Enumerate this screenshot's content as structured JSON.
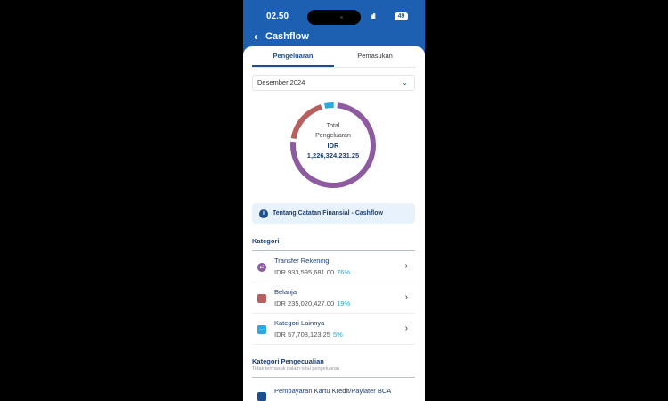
{
  "status": {
    "time": "02.50",
    "signal": "ııll",
    "battery": "49"
  },
  "header": {
    "back_icon": "chevron-left-icon",
    "title": "Cashflow"
  },
  "tabs": [
    {
      "label": "Pengeluaran",
      "active": true
    },
    {
      "label": "Pemasukan",
      "active": false
    }
  ],
  "period": {
    "value": "Desember 2024"
  },
  "donut": {
    "label1": "Total",
    "label2": "Pengeluaran",
    "currency": "IDR",
    "total": "1,226,324,231.25",
    "segments": [
      {
        "name": "Transfer Rekening",
        "percent": 76,
        "color": "#8e5aa0"
      },
      {
        "name": "Belanja",
        "percent": 19,
        "color": "#b8605f"
      },
      {
        "name": "Kategori Lainnya",
        "percent": 5,
        "color": "#29a9e0"
      }
    ]
  },
  "info": {
    "label": "Tentang Catatan Finansial - Cashflow"
  },
  "kategori": {
    "title": "Kategori",
    "items": [
      {
        "name": "Transfer Rekening",
        "amount": "IDR 933,595,681.00",
        "percent": "76%",
        "icon": "transfer-icon",
        "color": "#8e5aa0"
      },
      {
        "name": "Belanja",
        "amount": "IDR 235,020,427.00",
        "percent": "19%",
        "icon": "shopping-bag-icon",
        "color": "#b8605f"
      },
      {
        "name": "Kategori Lainnya",
        "amount": "IDR 57,708,123.25",
        "percent": "5%",
        "icon": "more-icon",
        "color": "#29a9e0"
      }
    ]
  },
  "pengecualian": {
    "title": "Kategori Pengecualian",
    "subtitle": "Tidak termasuk dalam total pengeluaran",
    "items": [
      {
        "name": "Pembayaran Kartu Kredit/Paylater BCA"
      }
    ]
  }
}
